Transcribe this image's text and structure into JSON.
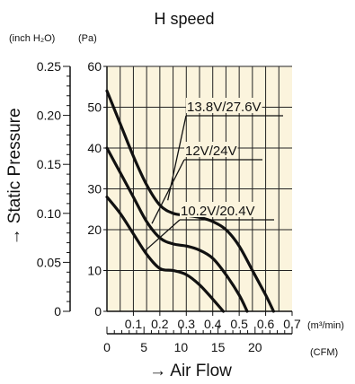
{
  "chart_data": {
    "type": "line",
    "title": "H speed",
    "xlabel": "→ Air Flow",
    "ylabel": "→ Static Pressure",
    "plot_background": "#fbf4dd",
    "grid": true,
    "x_primary": {
      "unit": "(m³/min)",
      "range": [
        0,
        0.7
      ],
      "ticks": [
        0.1,
        0.2,
        0.3,
        0.4,
        0.5,
        0.6,
        0.7
      ],
      "tick_labels": [
        "0.1",
        "0.2",
        "0.3",
        "0.4",
        "0.5",
        "0.6",
        "0.7"
      ]
    },
    "x_secondary": {
      "unit": "(CFM)",
      "range": [
        0,
        25
      ],
      "ticks": [
        0,
        5,
        10,
        15,
        20
      ],
      "tick_labels": [
        "0",
        "5",
        "10",
        "15",
        "20"
      ]
    },
    "y_primary": {
      "unit": "(Pa)",
      "range": [
        0,
        60
      ],
      "ticks": [
        0,
        10,
        20,
        30,
        40,
        50,
        60
      ],
      "tick_labels": [
        "0",
        "10",
        "20",
        "30",
        "40",
        "50",
        "60"
      ]
    },
    "y_secondary": {
      "unit": "(inch H₂O)",
      "range": [
        0,
        0.25
      ],
      "ticks": [
        0,
        0.05,
        0.1,
        0.15,
        0.2,
        0.25
      ],
      "tick_labels": [
        "0",
        "0.05",
        "0.10",
        "0.15",
        "0.20",
        "0.25"
      ]
    },
    "series": [
      {
        "name": "13.8V/27.6V",
        "x": [
          0,
          0.05,
          0.1,
          0.15,
          0.2,
          0.25,
          0.3,
          0.35,
          0.4,
          0.45,
          0.5,
          0.55,
          0.6,
          0.63
        ],
        "y": [
          54,
          46,
          38,
          31,
          26,
          24,
          23.5,
          23,
          22,
          20,
          16,
          10,
          4,
          0
        ]
      },
      {
        "name": "12V/24V",
        "x": [
          0,
          0.05,
          0.1,
          0.15,
          0.2,
          0.25,
          0.3,
          0.35,
          0.4,
          0.45,
          0.5,
          0.53
        ],
        "y": [
          40,
          34,
          28,
          22,
          18,
          16.5,
          16,
          15,
          13,
          9,
          4,
          0
        ]
      },
      {
        "name": "10.2V/20.4V",
        "x": [
          0,
          0.05,
          0.1,
          0.15,
          0.2,
          0.25,
          0.3,
          0.35,
          0.4,
          0.44
        ],
        "y": [
          28,
          24,
          19,
          14,
          10.5,
          10,
          9,
          6.5,
          3,
          0
        ]
      }
    ]
  }
}
